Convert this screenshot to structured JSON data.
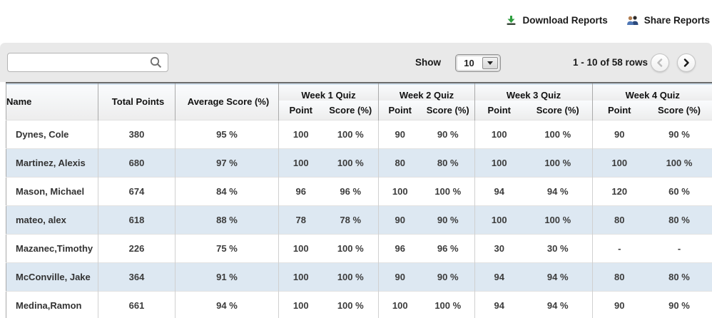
{
  "header": {
    "download_label": "Download Reports",
    "share_label": "Share Reports"
  },
  "toolbar": {
    "search": {
      "value": "",
      "placeholder": ""
    },
    "show_label": "Show",
    "page_size": "10",
    "range_text": "1 - 10 of 58 rows"
  },
  "icons": {
    "download": "download-arrow-into-tray",
    "share": "two-users",
    "search": "magnifier",
    "page_size_caret": "caret-down",
    "prev": "chevron-left",
    "next": "chevron-right"
  },
  "colors": {
    "toolbar_bg": "#e9e9e9",
    "stripe_row": "#dde8f2",
    "header_highlight": "#d3e2ef",
    "download_green": "#2e9e3e",
    "share_blue": "#3f62a0",
    "disabled_chevron": "#bcbcbc",
    "enabled_chevron": "#1a1a1a"
  },
  "table": {
    "columns": {
      "name": "Name",
      "total_points": "Total Points",
      "average_score": "Average Score (%)",
      "point": "Point",
      "score": "Score (%)"
    },
    "groups": [
      "Week 1 Quiz",
      "Week 2 Quiz",
      "Week 3 Quiz",
      "Week 4 Quiz"
    ],
    "column_keys": [
      "name",
      "total_points",
      "average_score",
      "w1_point",
      "w1_score",
      "w2_point",
      "w2_score",
      "w3_point",
      "w3_score",
      "w4_point",
      "w4_score"
    ],
    "rows": [
      [
        "Dynes, Cole",
        "380",
        "95 %",
        "100",
        "100 %",
        "90",
        "90 %",
        "100",
        "100 %",
        "90",
        "90 %"
      ],
      [
        "Martinez, Alexis",
        "680",
        "97 %",
        "100",
        "100 %",
        "80",
        "80 %",
        "100",
        "100 %",
        "100",
        "100 %"
      ],
      [
        "Mason, Michael",
        "674",
        "84 %",
        "96",
        "96 %",
        "100",
        "100 %",
        "94",
        "94 %",
        "120",
        "60 %"
      ],
      [
        "mateo, alex",
        "618",
        "88 %",
        "78",
        "78 %",
        "90",
        "90 %",
        "100",
        "100 %",
        "80",
        "80 %"
      ],
      [
        "Mazanec,Timothy",
        "226",
        "75 %",
        "100",
        "100 %",
        "96",
        "96 %",
        "30",
        "30 %",
        "-",
        "-"
      ],
      [
        "McConville, Jake",
        "364",
        "91 %",
        "100",
        "100 %",
        "90",
        "90 %",
        "94",
        "94 %",
        "80",
        "80 %"
      ],
      [
        "Medina,Ramon",
        "661",
        "94 %",
        "100",
        "100 %",
        "100",
        "100 %",
        "94",
        "94 %",
        "90",
        "90 %"
      ]
    ]
  }
}
